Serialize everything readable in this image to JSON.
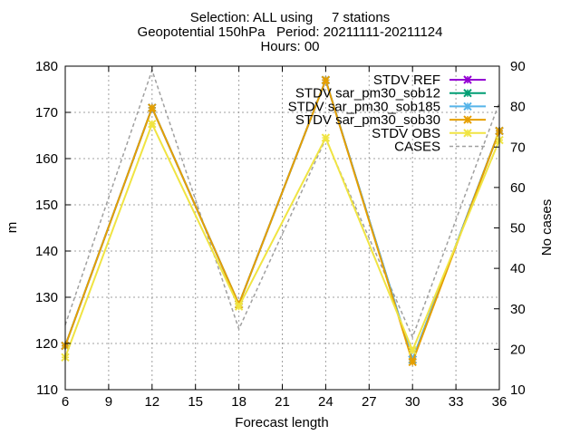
{
  "title_lines": [
    "Selection: ALL using     7 stations",
    "Geopotential 150hPa   Period: 20211111-20211124",
    "Hours: 00"
  ],
  "chart_data": {
    "type": "line",
    "xlabel": "Forecast length",
    "ylabel": "m",
    "y2label": "No cases",
    "x": [
      6,
      12,
      18,
      24,
      30,
      36
    ],
    "xlim": [
      6,
      36
    ],
    "xticks": [
      6,
      9,
      12,
      15,
      18,
      21,
      24,
      27,
      30,
      33,
      36
    ],
    "ylim": [
      110,
      180
    ],
    "yticks": [
      110,
      120,
      130,
      140,
      150,
      160,
      170,
      180
    ],
    "y2lim": [
      10,
      90
    ],
    "y2ticks": [
      10,
      20,
      30,
      40,
      50,
      60,
      70,
      80,
      90
    ],
    "grid": true,
    "legend_position": "top-right",
    "series": [
      {
        "name": "STDV REF",
        "color": "#9400d3",
        "marker": "x",
        "axis": "y",
        "values": [
          119.5,
          171.0,
          128.5,
          177.0,
          116.5,
          166.0
        ]
      },
      {
        "name": "STDV sar_pm30_sob12",
        "color": "#009e73",
        "marker": "x",
        "axis": "y",
        "values": [
          119.5,
          171.0,
          128.5,
          177.0,
          116.5,
          166.0
        ]
      },
      {
        "name": "STDV sar_pm30_sob185",
        "color": "#56b4e9",
        "marker": "x",
        "axis": "y",
        "values": [
          119.5,
          171.0,
          128.5,
          177.0,
          116.5,
          166.0
        ]
      },
      {
        "name": "STDV sar_pm30_sob30",
        "color": "#e69f00",
        "marker": "x",
        "axis": "y",
        "values": [
          119.5,
          171.0,
          128.5,
          177.0,
          116.0,
          166.0
        ]
      },
      {
        "name": "STDV OBS",
        "color": "#f0e442",
        "marker": "x",
        "axis": "y",
        "values": [
          117.0,
          167.5,
          128.0,
          164.5,
          118.5,
          164.0
        ]
      },
      {
        "name": "CASES",
        "color": "#a0a0a0",
        "marker": "none",
        "dash": true,
        "axis": "y2",
        "values": [
          26,
          89,
          25,
          72,
          23,
          81
        ]
      }
    ]
  }
}
